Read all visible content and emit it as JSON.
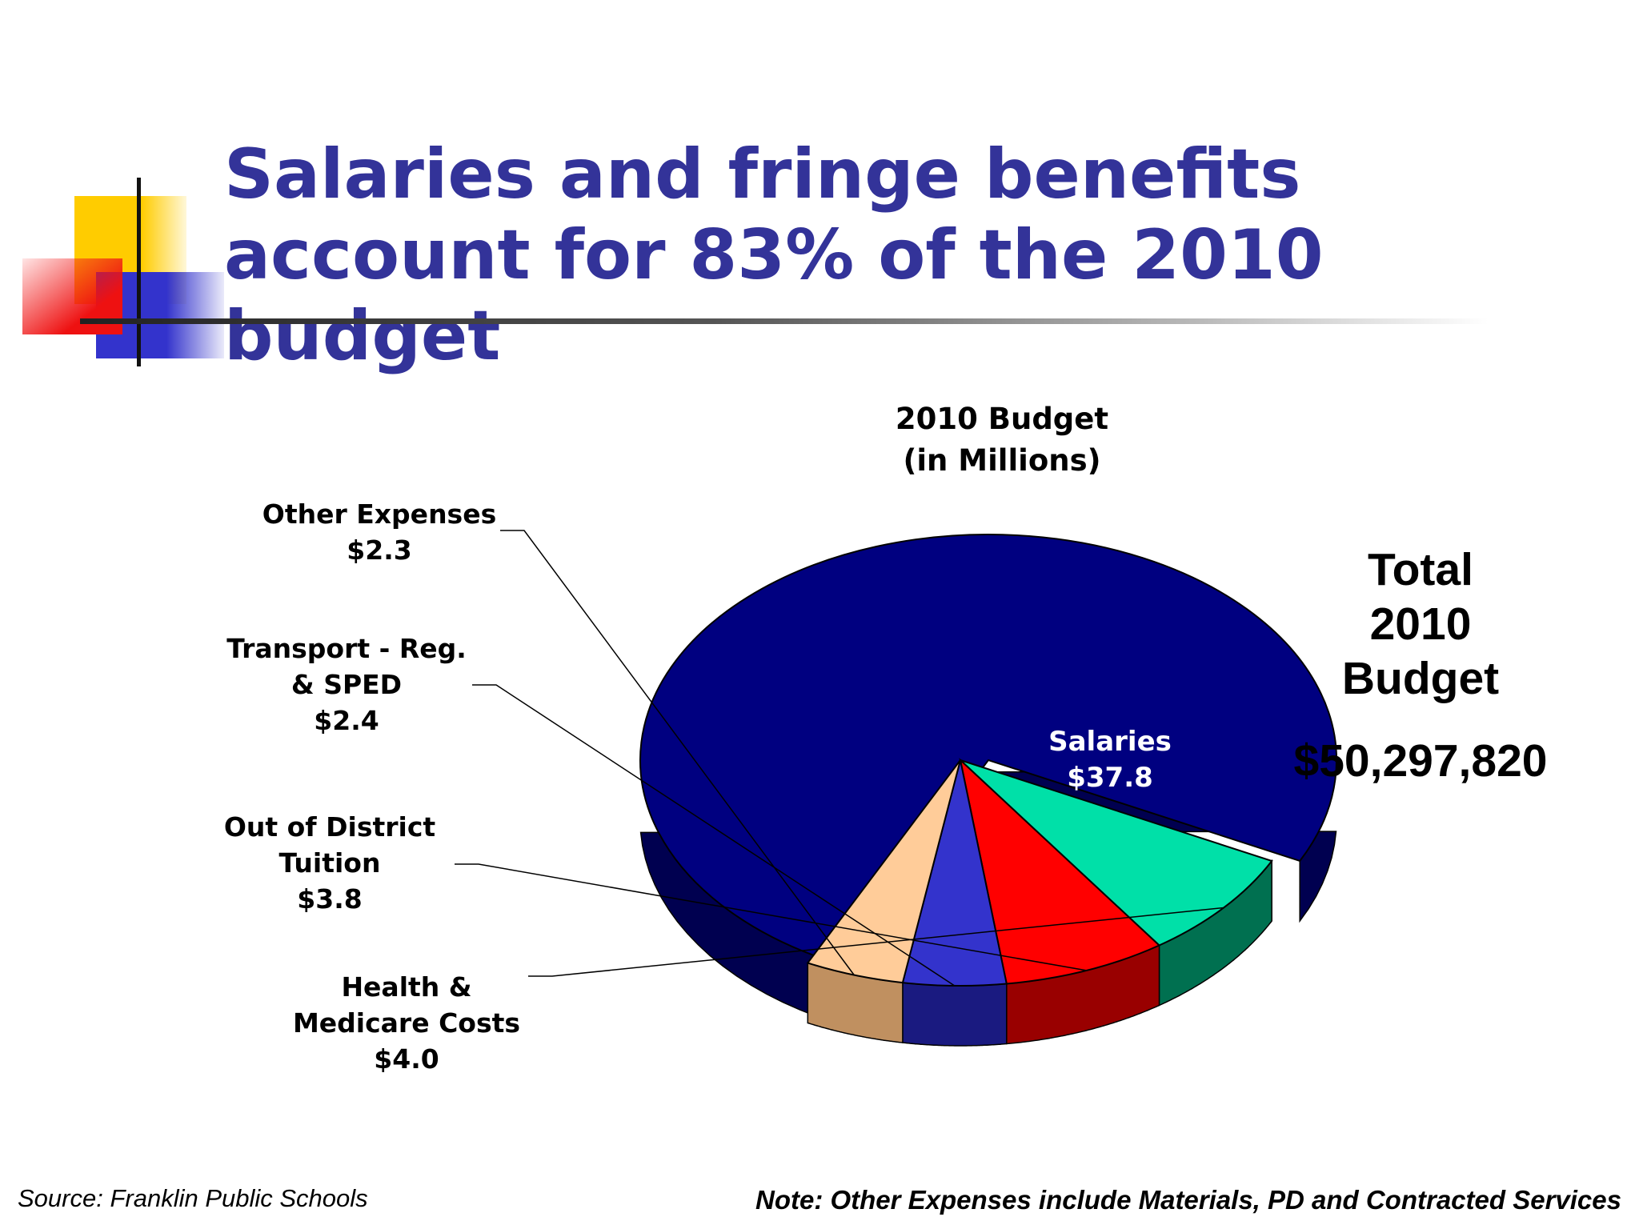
{
  "slide": {
    "title": "Salaries and fringe benefits account for 83% of the 2010 budget",
    "source": "Source: Franklin Public Schools",
    "note": "Note: Other Expenses include Materials, PD and Contracted Services"
  },
  "total_box": {
    "lines": [
      "Total",
      "2010",
      "Budget"
    ],
    "amount": "$50,297,820"
  },
  "chart_data": {
    "type": "pie",
    "title": "2010 Budget",
    "subtitle": "(in Millions)",
    "legend": "none",
    "slices": [
      {
        "name": "Salaries",
        "value": 37.8,
        "label_lines": [
          "Salaries",
          "$37.8"
        ],
        "color": "#000080",
        "side_color": "#000050",
        "exploded": true
      },
      {
        "name": "Health & Medicare Costs",
        "value": 4.0,
        "label_lines": [
          "Health &",
          "Medicare Costs",
          "$4.0"
        ],
        "color": "#00e0a8",
        "side_color": "#007050",
        "exploded": false
      },
      {
        "name": "Out of District Tuition",
        "value": 3.8,
        "label_lines": [
          "Out of District",
          "Tuition",
          "$3.8"
        ],
        "color": "#ff0000",
        "side_color": "#990000",
        "exploded": false
      },
      {
        "name": "Transport - Reg. & SPED",
        "value": 2.4,
        "label_lines": [
          "Transport - Reg.",
          "& SPED",
          "$2.4"
        ],
        "color": "#3333cc",
        "side_color": "#1a1a80",
        "exploded": false
      },
      {
        "name": "Other Expenses",
        "value": 2.3,
        "label_lines": [
          "Other Expenses",
          "$2.3"
        ],
        "color": "#ffcc99",
        "side_color": "#c09060",
        "exploded": false
      }
    ]
  }
}
